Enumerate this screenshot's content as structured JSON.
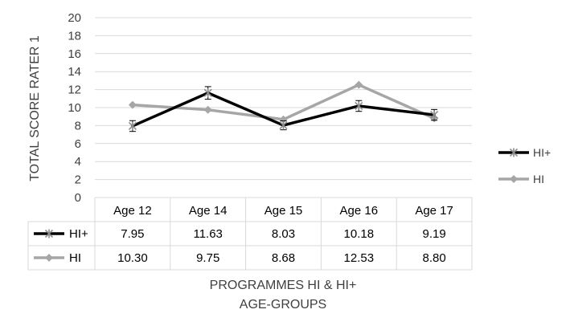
{
  "chart_data": {
    "type": "line",
    "title": "",
    "ylabel": "TOTAL SCORE RATER 1",
    "xlabel_line1": "PROGRAMMES HI & HI+",
    "xlabel_line2": "AGE-GROUPS",
    "categories": [
      "Age 12",
      "Age 14",
      "Age 15",
      "Age 16",
      "Age 17"
    ],
    "ylim": [
      0,
      20
    ],
    "yticks": [
      0,
      2,
      4,
      6,
      8,
      10,
      12,
      14,
      16,
      18,
      20
    ],
    "grid": true,
    "legend_position": "right",
    "series": [
      {
        "name": "HI+",
        "values": [
          7.95,
          11.63,
          8.03,
          10.18,
          9.19
        ],
        "labels": [
          "7.95",
          "11.63",
          "8.03",
          "10.18",
          "9.19"
        ],
        "error": [
          0.6,
          0.7,
          0.5,
          0.6,
          0.6
        ],
        "color": "#000000",
        "marker": "x-star"
      },
      {
        "name": "HI",
        "values": [
          10.3,
          9.75,
          8.68,
          12.53,
          8.8
        ],
        "labels": [
          "10.30",
          "9.75",
          "8.68",
          "12.53",
          "8.80"
        ],
        "color": "#a6a6a6",
        "marker": "diamond"
      }
    ]
  }
}
